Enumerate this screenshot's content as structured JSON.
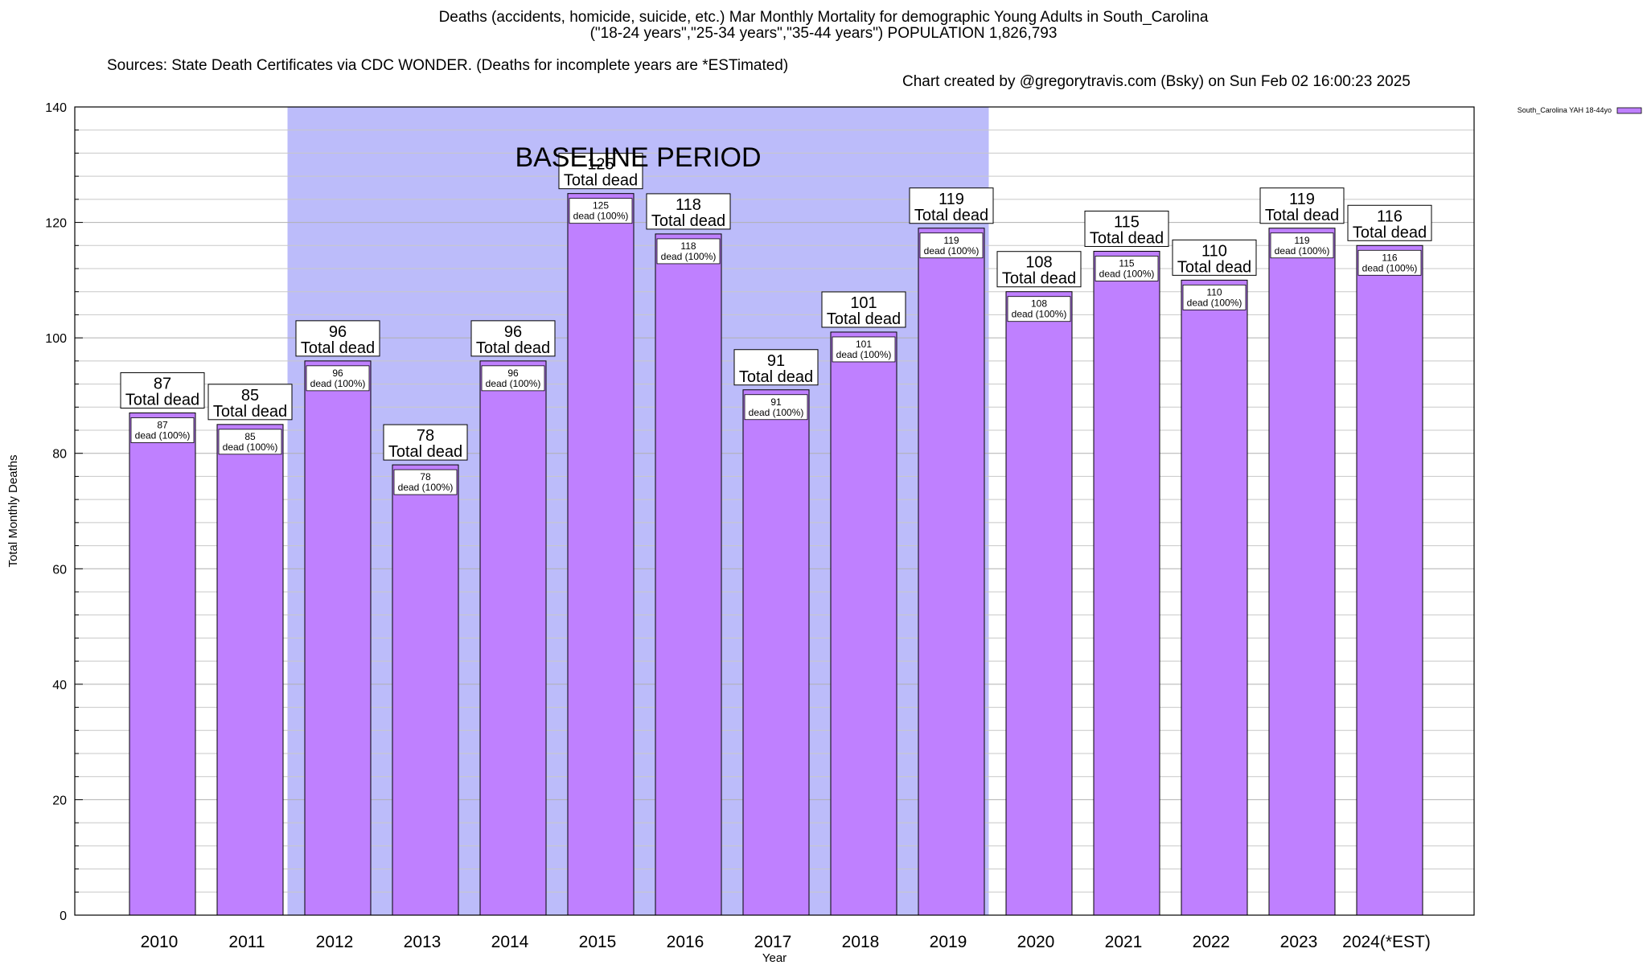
{
  "title": {
    "line1": "Deaths (accidents, homicide, suicide, etc.) Mar Monthly Mortality for demographic Young Adults in South_Carolina",
    "line2": "(\"18-24 years\",\"25-34 years\",\"35-44 years\") POPULATION 1,826,793",
    "sources": "Sources: State Death Certificates via CDC WONDER. (Deaths for incomplete years are *ESTimated)",
    "credit": "Chart created by @gregorytravis.com (Bsky) on Sun Feb 02 16:00:23 2025"
  },
  "chart_data": {
    "type": "bar",
    "xlabel": "Year",
    "ylabel": "Total Monthly Deaths",
    "ylim": [
      0,
      140
    ],
    "yticks": [
      0,
      20,
      40,
      60,
      80,
      100,
      120,
      140
    ],
    "grid": true,
    "legend_position": "top-right",
    "categories": [
      "2010",
      "2011",
      "2012",
      "2013",
      "2014",
      "2015",
      "2016",
      "2017",
      "2018",
      "2019",
      "2020",
      "2021",
      "2022",
      "2023",
      "2024(*EST)"
    ],
    "series": [
      {
        "name": "South_Carolina YAH 18-44yo",
        "values": [
          87,
          85,
          96,
          78,
          96,
          125,
          118,
          91,
          101,
          119,
          108,
          115,
          110,
          119,
          116
        ]
      }
    ],
    "bar_label_total_text": "Total dead",
    "bar_label_share_text": "dead (100%)",
    "baseline_period": {
      "label": "BASELINE PERIOD",
      "start": "2012",
      "end": "2019"
    },
    "colors": {
      "bar_fill": "#bf80ff",
      "bar_stroke": "#000000",
      "baseline_fill": "#bcbcfa",
      "grid": "#c8c8c8",
      "label_box": "#ffffff"
    }
  }
}
